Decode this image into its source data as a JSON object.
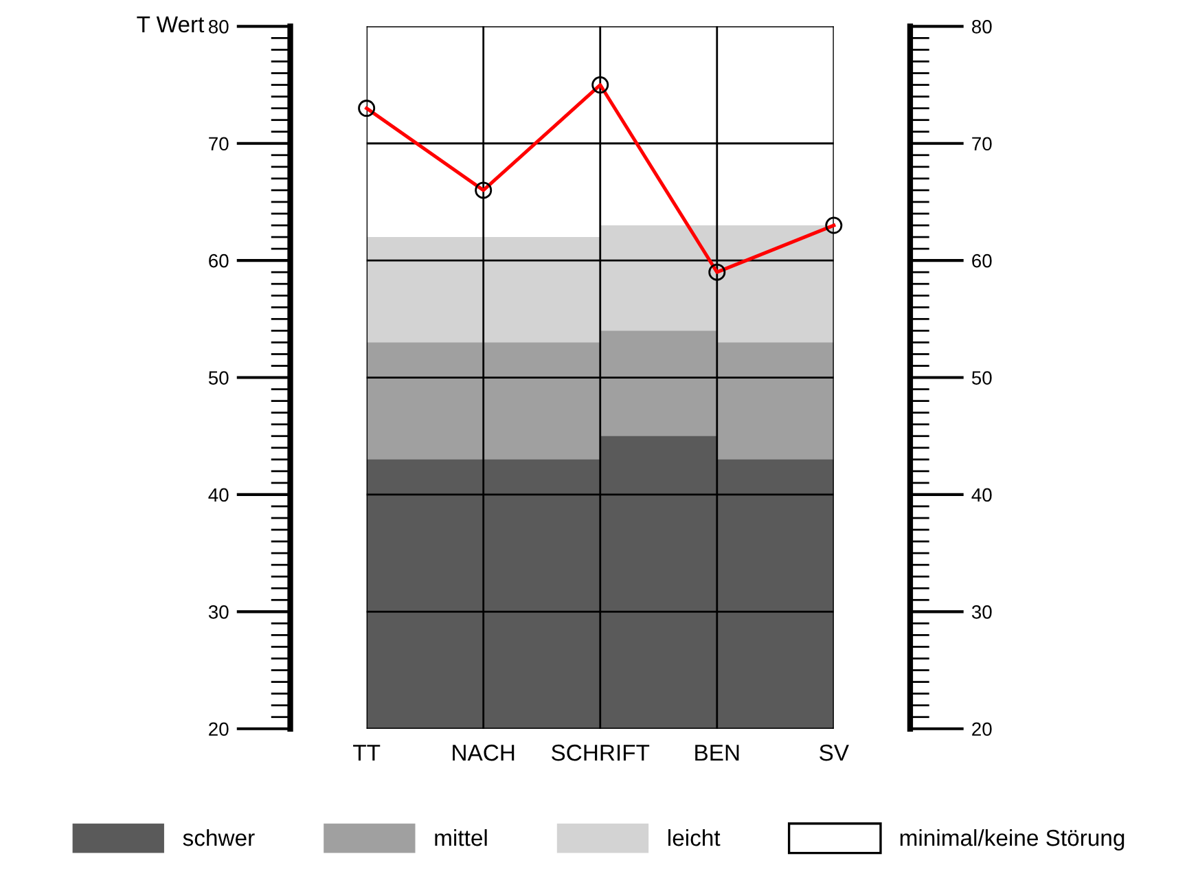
{
  "chart_data": {
    "type": "line",
    "ylabel": "T Wert",
    "categories": [
      "TT",
      "NACH",
      "SCHRIFT",
      "BEN",
      "SV"
    ],
    "ylim": [
      20,
      80
    ],
    "yticks": [
      20,
      30,
      40,
      50,
      60,
      70,
      80
    ],
    "y2lim": [
      20,
      80
    ],
    "y2ticks": [
      20,
      30,
      40,
      50,
      60,
      70,
      80
    ],
    "series": [
      {
        "type": "area",
        "name": "schwer",
        "color": "#5a5a5a",
        "values": [
          43,
          43,
          45,
          43,
          43
        ]
      },
      {
        "type": "area",
        "name": "mittel",
        "color": "#a0a0a0",
        "values": [
          53,
          53,
          54,
          53,
          53
        ]
      },
      {
        "type": "area",
        "name": "leicht",
        "color": "#d3d3d3",
        "values": [
          62,
          62,
          63,
          63,
          63
        ]
      },
      {
        "type": "area",
        "name": "minimal/keine Störung",
        "color": "#ffffff",
        "values": [
          null,
          null,
          null,
          null,
          null
        ]
      },
      {
        "color": "#ff0000",
        "values": [
          73,
          66,
          75,
          59,
          63
        ],
        "marker": "circle",
        "line_style": "solid"
      }
    ],
    "grid": true,
    "legend": "bottom"
  }
}
